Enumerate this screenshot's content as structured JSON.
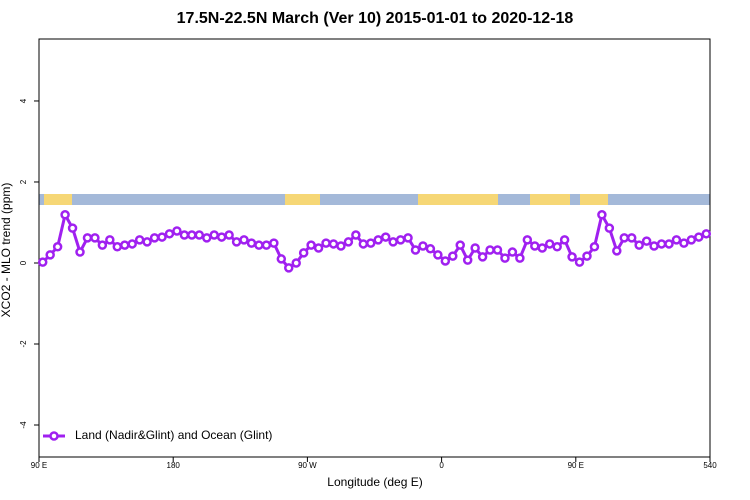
{
  "chart_data": {
    "type": "line",
    "title": "17.5N-22.5N March (Ver 10)   2015-01-01 to 2020-12-18",
    "x_label": "Longitude (deg E)",
    "y_label": "XCO2 - MLO trend (ppm)",
    "x": [
      92.5,
      97.5,
      102.5,
      107.5,
      112.5,
      117.5,
      122.5,
      127.5,
      132.5,
      137.5,
      142.5,
      147.5,
      152.5,
      157.5,
      162.5,
      167.5,
      172.5,
      177.5,
      182.5,
      187.5,
      192.5,
      197.5,
      202.5,
      207.5,
      212.5,
      217.5,
      222.5,
      227.5,
      232.5,
      237.5,
      242.5,
      247.5,
      252.5,
      257.5,
      262.5,
      267.5,
      272.5,
      277.5,
      282.5,
      287.5,
      292.5,
      297.5,
      302.5,
      307.5,
      312.5,
      317.5,
      322.5,
      327.5,
      332.5,
      337.5,
      342.5,
      347.5,
      352.5,
      357.5,
      362.5,
      367.5,
      372.5,
      377.5,
      382.5,
      387.5,
      392.5,
      397.5,
      402.5,
      407.5,
      412.5,
      417.5,
      422.5,
      427.5,
      432.5,
      437.5,
      442.5,
      447.5,
      452.5,
      457.5,
      462.5,
      467.5,
      472.5,
      477.5,
      482.5,
      487.5,
      492.5,
      497.5,
      502.5,
      507.5,
      512.5,
      517.5,
      522.5,
      527.5,
      532.5,
      537.5
    ],
    "series": [
      {
        "name": "Land (Nadir&Glint) and Ocean (Glint)",
        "color": "#a020f0",
        "values": [
          0.02,
          0.2,
          0.4,
          1.19,
          0.86,
          0.27,
          0.62,
          0.62,
          0.44,
          0.57,
          0.4,
          0.44,
          0.47,
          0.57,
          0.52,
          0.62,
          0.64,
          0.72,
          0.79,
          0.69,
          0.69,
          0.69,
          0.62,
          0.69,
          0.64,
          0.69,
          0.52,
          0.57,
          0.49,
          0.44,
          0.44,
          0.49,
          0.1,
          -0.12,
          0.0,
          0.25,
          0.44,
          0.37,
          0.49,
          0.47,
          0.42,
          0.52,
          0.69,
          0.47,
          0.49,
          0.57,
          0.64,
          0.52,
          0.57,
          0.62,
          0.32,
          0.42,
          0.35,
          0.2,
          0.05,
          0.17,
          0.44,
          0.07,
          0.37,
          0.15,
          0.32,
          0.32,
          0.12,
          0.27,
          0.12,
          0.57,
          0.42,
          0.37,
          0.47,
          0.4,
          0.57,
          0.15,
          0.02,
          0.17,
          0.4,
          1.19,
          0.86,
          0.3,
          0.62,
          0.62,
          0.44,
          0.54,
          0.42,
          0.47,
          0.47,
          0.57,
          0.49,
          0.57,
          0.64,
          0.72
        ]
      }
    ],
    "xlim": [
      90,
      540
    ],
    "xticks": [
      {
        "value": 90,
        "label": "90 E"
      },
      180,
      {
        "value": 270,
        "label": "90 W"
      },
      {
        "value": 360,
        "label": "0"
      },
      {
        "value": 450,
        "label": "90 E"
      },
      540
    ],
    "ylim": [
      -4.79,
      5.53
    ],
    "yticks": [
      -4,
      -2,
      0,
      2,
      4
    ],
    "legend": "lower left"
  }
}
